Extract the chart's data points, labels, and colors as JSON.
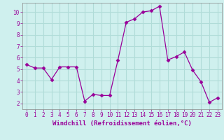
{
  "x": [
    0,
    1,
    2,
    3,
    4,
    5,
    6,
    7,
    8,
    9,
    10,
    11,
    12,
    13,
    14,
    15,
    16,
    17,
    18,
    19,
    20,
    21,
    22,
    23
  ],
  "y": [
    5.4,
    5.1,
    5.1,
    4.1,
    5.2,
    5.2,
    5.2,
    2.2,
    2.8,
    2.7,
    2.7,
    5.8,
    9.1,
    9.4,
    10.0,
    10.1,
    10.5,
    5.8,
    6.1,
    6.5,
    4.9,
    3.9,
    2.1,
    2.5
  ],
  "line_color": "#990099",
  "marker": "D",
  "marker_size": 2.5,
  "bg_color": "#cff0ee",
  "grid_color": "#b0dcd8",
  "xlabel": "Windchill (Refroidissement éolien,°C)",
  "ylabel": "",
  "title": "",
  "xlim": [
    -0.5,
    23.5
  ],
  "ylim": [
    1.5,
    10.8
  ],
  "yticks": [
    2,
    3,
    4,
    5,
    6,
    7,
    8,
    9,
    10
  ],
  "xticks": [
    0,
    1,
    2,
    3,
    4,
    5,
    6,
    7,
    8,
    9,
    10,
    11,
    12,
    13,
    14,
    15,
    16,
    17,
    18,
    19,
    20,
    21,
    22,
    23
  ],
  "tick_fontsize": 5.5,
  "xlabel_fontsize": 6.5,
  "spine_color": "#888888",
  "axis_bg": "#cff0ee"
}
